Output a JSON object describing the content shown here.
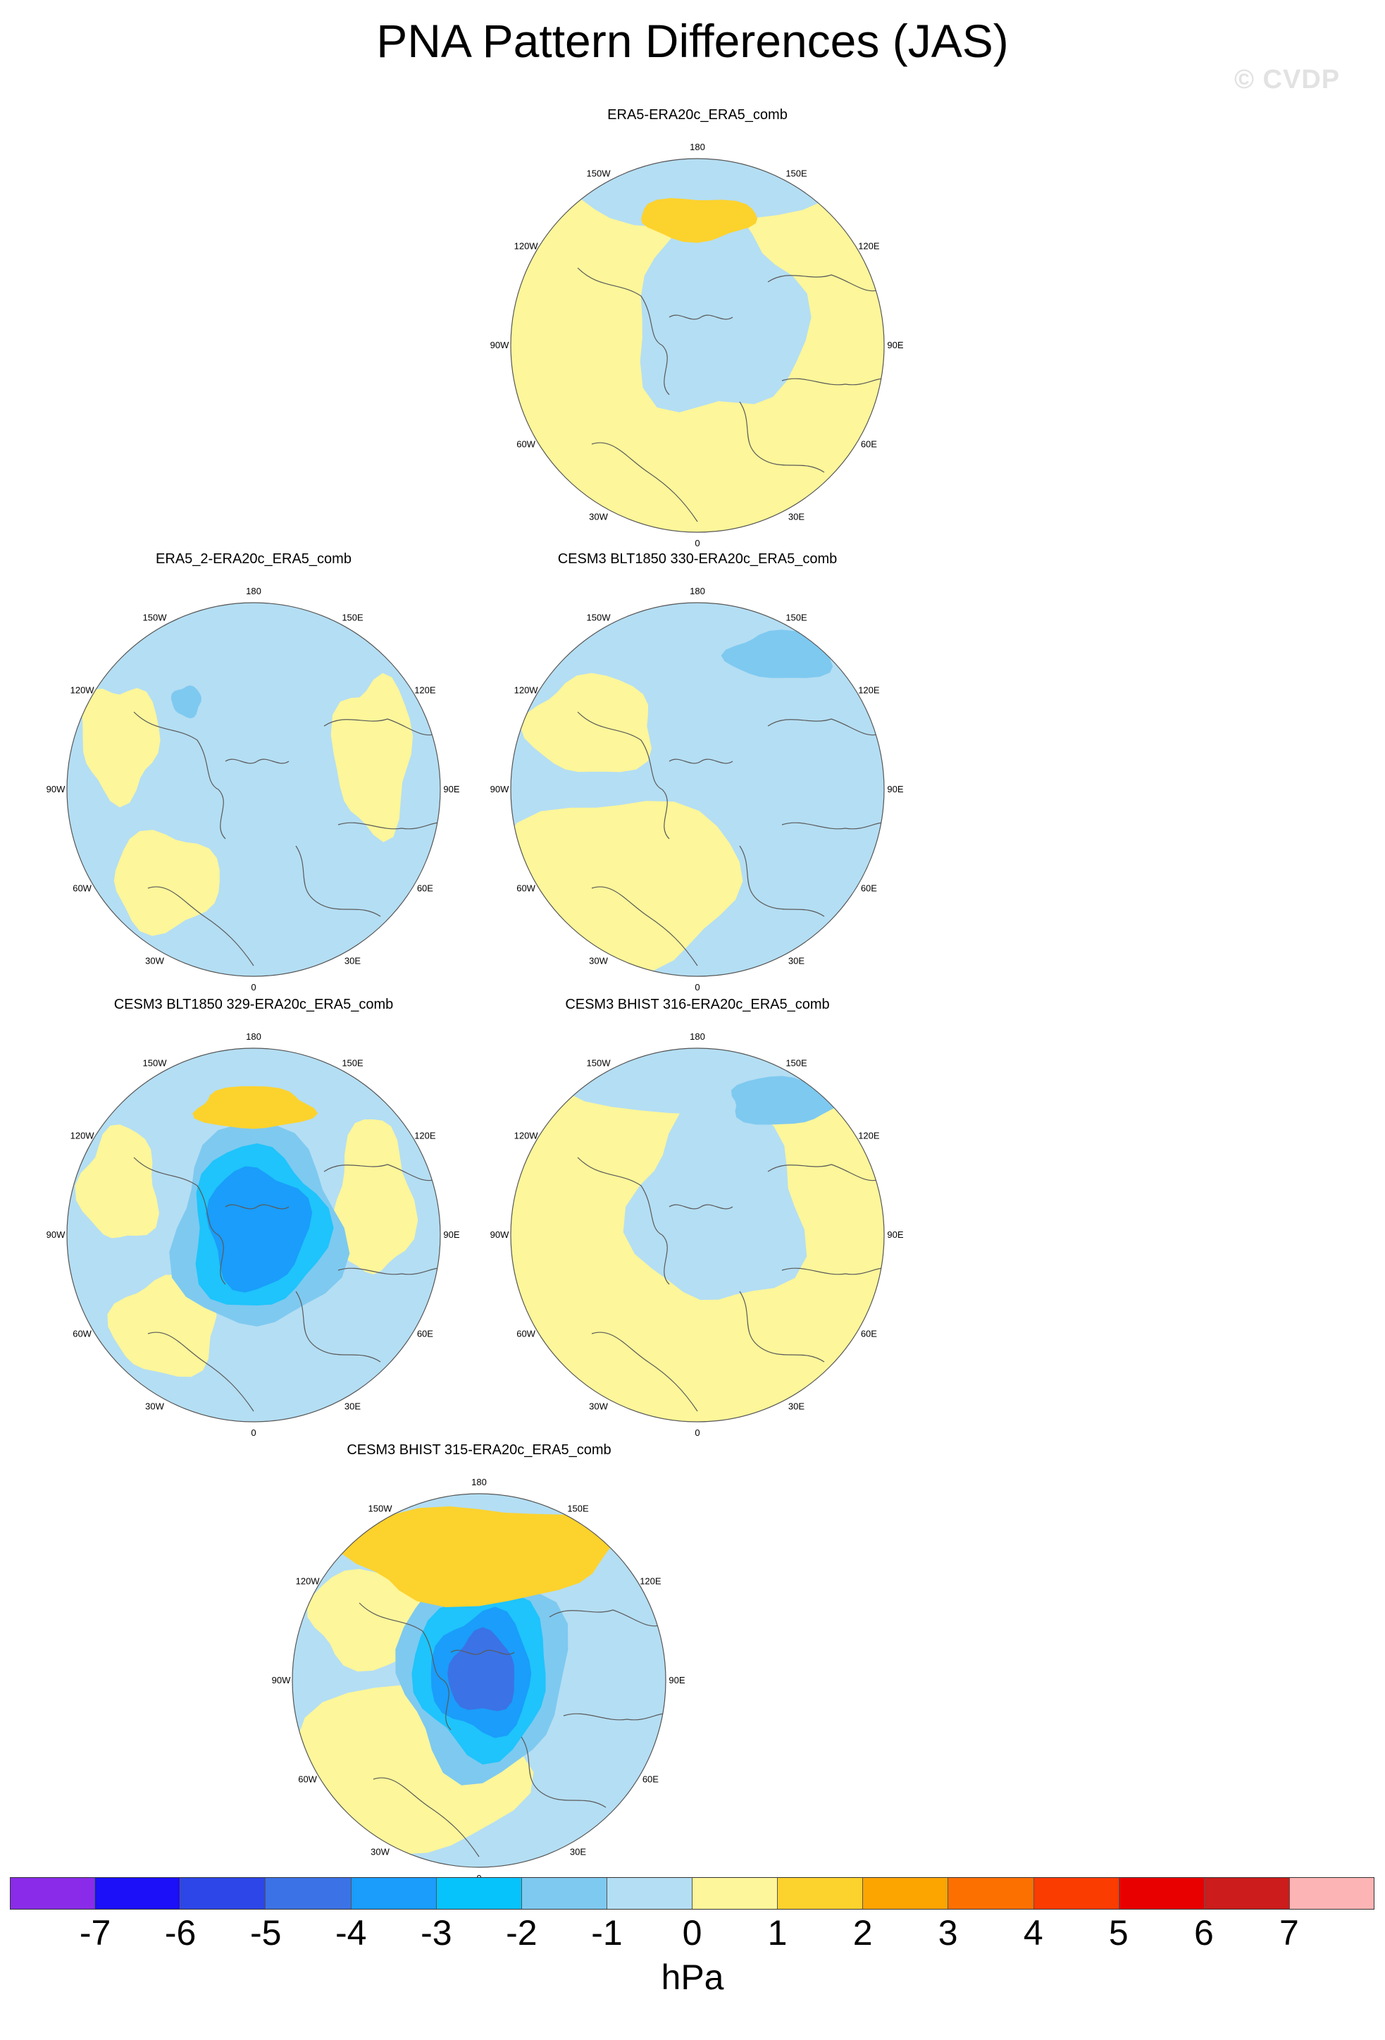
{
  "title": "PNA Pattern Differences (JAS)",
  "credit": "© CVDP",
  "colors": {
    "land_coast": "#5a5a5a",
    "neg_1": "#b4def3",
    "neg_2": "#7ec9f0",
    "neg_3": "#1ec4fb",
    "neg_4": "#1a9dfb",
    "neg_5": "#3b72e6",
    "pos_1": "#fdf69a",
    "pos_2": "#fcd22d"
  },
  "longitude_labels": {
    "top": "180",
    "bottom": "0",
    "left": "90W",
    "right": "90E",
    "upper_left": "150W",
    "upper_right": "150E",
    "mid_upper_left": "120W",
    "mid_upper_right": "120E",
    "mid_lower_left": "60W",
    "mid_lower_right": "60E",
    "lower_left": "30W",
    "lower_right": "30E"
  },
  "panels": [
    {
      "id": "p1",
      "title": "ERA5-ERA20c_ERA5_comb",
      "dominant": "pos",
      "features": [
        {
          "sign": "pos",
          "level": 2,
          "where": "north-pacific",
          "size": "small"
        }
      ]
    },
    {
      "id": "p2",
      "title": "ERA5_2-ERA20c_ERA5_comb",
      "dominant": "neg",
      "features": [
        {
          "sign": "neg",
          "level": 2,
          "where": "bering",
          "size": "small"
        }
      ]
    },
    {
      "id": "p3",
      "title": "CESM3 BLT1850 330-ERA20c_ERA5_comb",
      "dominant": "mixed",
      "features": [
        {
          "sign": "neg",
          "level": 2,
          "where": "northwest-pacific",
          "size": "medium"
        }
      ]
    },
    {
      "id": "p4",
      "title": "CESM3 BLT1850 329-ERA20c_ERA5_comb",
      "dominant": "neg",
      "features": [
        {
          "sign": "neg",
          "level": 4,
          "where": "pole",
          "size": "large"
        },
        {
          "sign": "pos",
          "level": 2,
          "where": "north-pacific",
          "size": "small"
        }
      ]
    },
    {
      "id": "p5",
      "title": "CESM3 BHIST 316-ERA20c_ERA5_comb",
      "dominant": "pos",
      "features": [
        {
          "sign": "neg",
          "level": 2,
          "where": "northwest-pacific",
          "size": "medium"
        }
      ]
    },
    {
      "id": "p6",
      "title": "CESM3 BHIST 315-ERA20c_ERA5_comb",
      "dominant": "mixed",
      "features": [
        {
          "sign": "neg",
          "level": 5,
          "where": "pole",
          "size": "large"
        },
        {
          "sign": "pos",
          "level": 2,
          "where": "north-pacific",
          "size": "large"
        }
      ]
    }
  ],
  "colorbar": {
    "unit": "hPa",
    "colors": [
      "#8a2be9",
      "#1b10f8",
      "#2c46e8",
      "#3b72e6",
      "#1a9dfb",
      "#06c3fb",
      "#7ec9f0",
      "#b4def3",
      "#fdf69a",
      "#fcd22d",
      "#fca400",
      "#fc7000",
      "#fb3c00",
      "#e80000",
      "#cc1c1c",
      "#fcb4b4"
    ],
    "ticks": [
      "-7",
      "-6",
      "-5",
      "-4",
      "-3",
      "-2",
      "-1",
      "0",
      "1",
      "2",
      "3",
      "4",
      "5",
      "6",
      "7"
    ]
  }
}
